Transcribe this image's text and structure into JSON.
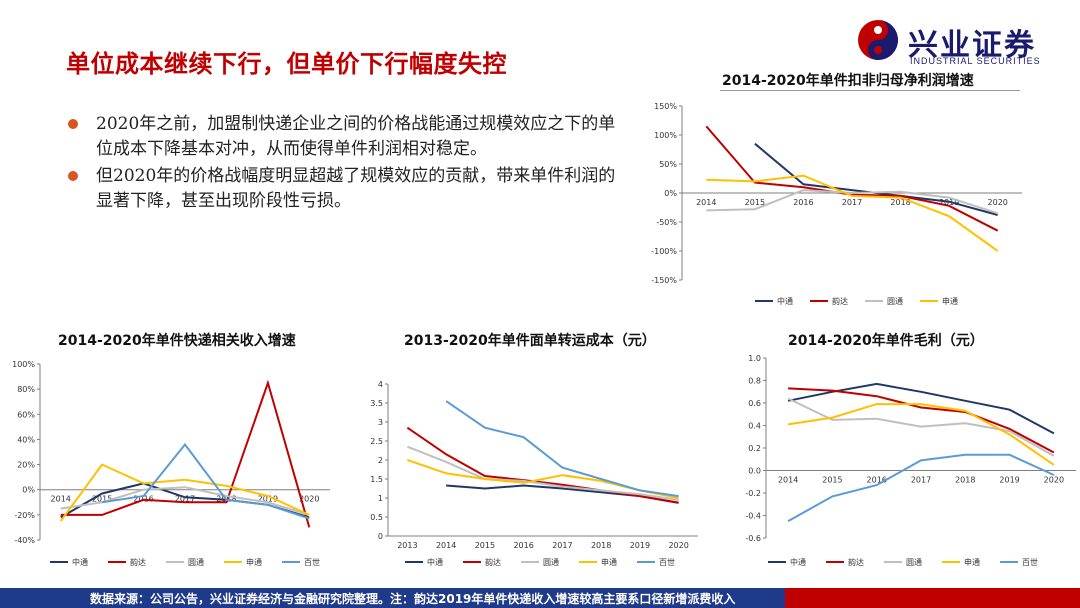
{
  "slide": {
    "title": "单位成本继续下行，但单价下行幅度失控",
    "logo_cn": "兴业证券",
    "logo_en": "INDUSTRIAL SECURITIES",
    "bullets": [
      "2020年之前，加盟制快递企业之间的价格战能通过规模效应之下的单位成本下降基本对冲，从而使得单件利润相对稳定。",
      "但2020年的价格战幅度明显超越了规模效应的贡献，带来单件利润的显著下降，甚至出现阶段性亏损。"
    ],
    "footer": "数据来源：公司公告，兴业证券经济与金融研究院整理。注：韵达2019年单件快递收入增速较高主要系口径新增派费收入"
  },
  "colors": {
    "中通": "#1f3864",
    "韵达": "#c00000",
    "圆通": "#bfbfbf",
    "申通": "#ffc000",
    "百世": "#5b9bd5"
  },
  "chart_data": [
    {
      "id": "profit",
      "type": "line",
      "title": "2014-2020年单件扣非归母净利润增速",
      "x": [
        "2014",
        "2015",
        "2016",
        "2017",
        "2018",
        "2019",
        "2020"
      ],
      "ylim": [
        -150,
        150
      ],
      "yticks": [
        "150%",
        "100%",
        "50%",
        "0%",
        "-50%",
        "-100%",
        "-150%"
      ],
      "ytick_values": [
        150,
        100,
        50,
        0,
        -50,
        -100,
        -150
      ],
      "series": [
        {
          "name": "中通",
          "values": [
            null,
            85,
            15,
            5,
            -5,
            -15,
            -38
          ]
        },
        {
          "name": "韵达",
          "values": [
            115,
            18,
            10,
            -3,
            -5,
            -22,
            -65
          ]
        },
        {
          "name": "圆通",
          "values": [
            -30,
            -28,
            5,
            0,
            2,
            -8,
            -35
          ]
        },
        {
          "name": "申通",
          "values": [
            23,
            20,
            30,
            -5,
            -8,
            -40,
            -100
          ]
        }
      ]
    },
    {
      "id": "revenue",
      "type": "line",
      "title": "2014-2020年单件快递相关收入增速",
      "x": [
        "2014",
        "2015",
        "2016",
        "2017",
        "2018",
        "2019",
        "2020"
      ],
      "ylim": [
        -40,
        100
      ],
      "yticks": [
        "100%",
        "80%",
        "60%",
        "40%",
        "20%",
        "0%",
        "-20%",
        "-40%"
      ],
      "ytick_values": [
        100,
        80,
        60,
        40,
        20,
        0,
        -20,
        -40
      ],
      "series": [
        {
          "name": "中通",
          "values": [
            -22,
            -3,
            5,
            -6,
            -8,
            -12,
            -22
          ]
        },
        {
          "name": "韵达",
          "values": [
            -20,
            -20,
            -8,
            -10,
            -10,
            85,
            -30
          ]
        },
        {
          "name": "圆通",
          "values": [
            -15,
            -10,
            0,
            2,
            -5,
            -10,
            -20
          ]
        },
        {
          "name": "申通",
          "values": [
            -25,
            20,
            5,
            8,
            3,
            -5,
            -20
          ]
        },
        {
          "name": "百世",
          "values": [
            null,
            -10,
            -5,
            36,
            -8,
            -12,
            -23
          ]
        }
      ]
    },
    {
      "id": "cost",
      "type": "line",
      "title": "2013-2020年单件面单转运成本（元）",
      "x": [
        "2013",
        "2014",
        "2015",
        "2016",
        "2017",
        "2018",
        "2019",
        "2020"
      ],
      "ylim": [
        0,
        4
      ],
      "yticks": [
        "4",
        "3.5",
        "3",
        "2.5",
        "2",
        "1.5",
        "1",
        "0.5",
        "0"
      ],
      "ytick_values": [
        4,
        3.5,
        3,
        2.5,
        2,
        1.5,
        1,
        0.5,
        0
      ],
      "series": [
        {
          "name": "中通",
          "values": [
            null,
            1.33,
            1.25,
            1.33,
            1.25,
            1.15,
            1.05,
            0.88
          ]
        },
        {
          "name": "韵达",
          "values": [
            2.85,
            2.15,
            1.58,
            1.47,
            1.35,
            1.2,
            1.05,
            0.87
          ]
        },
        {
          "name": "圆通",
          "values": [
            2.35,
            1.95,
            1.5,
            1.45,
            1.3,
            1.2,
            1.1,
            0.95
          ]
        },
        {
          "name": "申通",
          "values": [
            2.0,
            1.65,
            1.5,
            1.4,
            1.6,
            1.45,
            1.2,
            1.0
          ]
        },
        {
          "name": "百世",
          "values": [
            null,
            3.55,
            2.85,
            2.6,
            1.8,
            1.5,
            1.2,
            1.05
          ]
        }
      ]
    },
    {
      "id": "margin",
      "type": "line",
      "title": "2014-2020年单件毛利（元）",
      "x": [
        "2014",
        "2015",
        "2016",
        "2017",
        "2018",
        "2019",
        "2020"
      ],
      "ylim": [
        -0.6,
        1.0
      ],
      "yticks": [
        "1.0",
        "0.8",
        "0.6",
        "0.4",
        "0.2",
        "0.0",
        "-0.2",
        "-0.4",
        "-0.6"
      ],
      "ytick_values": [
        1.0,
        0.8,
        0.6,
        0.4,
        0.2,
        0.0,
        -0.2,
        -0.4,
        -0.6
      ],
      "series": [
        {
          "name": "中通",
          "values": [
            0.62,
            0.7,
            0.77,
            0.7,
            0.62,
            0.54,
            0.33
          ]
        },
        {
          "name": "韵达",
          "values": [
            0.73,
            0.71,
            0.66,
            0.56,
            0.52,
            0.37,
            0.16
          ]
        },
        {
          "name": "圆通",
          "values": [
            0.64,
            0.45,
            0.46,
            0.39,
            0.42,
            0.35,
            0.13
          ]
        },
        {
          "name": "申通",
          "values": [
            0.41,
            0.47,
            0.59,
            0.59,
            0.53,
            0.32,
            0.05
          ]
        },
        {
          "name": "百世",
          "values": [
            -0.45,
            -0.23,
            -0.13,
            0.09,
            0.14,
            0.14,
            -0.04
          ]
        }
      ]
    }
  ]
}
